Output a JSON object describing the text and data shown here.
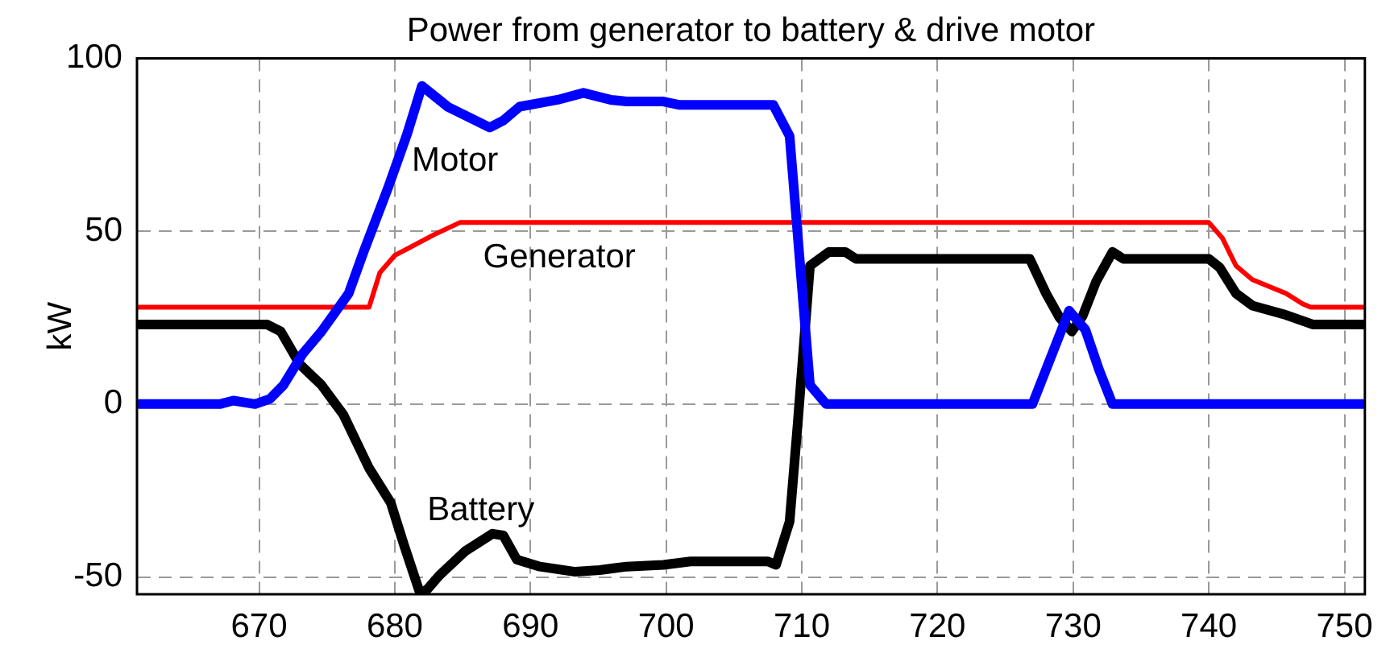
{
  "chart_data": {
    "type": "line",
    "title": "Power from generator to battery & drive motor",
    "ylabel": "kW",
    "xlim": [
      661,
      751.5
    ],
    "xticks": [
      670,
      680,
      690,
      700,
      710,
      720,
      730,
      740,
      750
    ],
    "ylim": [
      -55,
      100
    ],
    "yticks": [
      -50,
      0,
      50,
      100
    ],
    "grid": true,
    "marker": "none",
    "series": [
      {
        "name": "Motor",
        "color": "#0000ff",
        "x": [
          661,
          667.1,
          668.1,
          669.7,
          670.8,
          671.8,
          673.2,
          674.6,
          676.6,
          677.7,
          679.5,
          680.9,
          682,
          683.9,
          687,
          688,
          689.2,
          692,
          693.9,
          695.9,
          697.1,
          699.8,
          701,
          707.9,
          709.1,
          710.6,
          711.8,
          727,
          729.7,
          730.9,
          731.9,
          732.9,
          751.5
        ],
        "values": [
          0,
          0,
          1,
          0,
          1.5,
          5.5,
          14.5,
          21,
          32,
          44,
          62.5,
          78,
          92,
          86,
          80,
          82,
          86,
          88,
          90,
          88,
          87.5,
          87.5,
          86.5,
          86.5,
          77.5,
          5.5,
          0,
          0,
          27,
          21.5,
          10,
          0,
          0
        ]
      },
      {
        "name": "Generator",
        "color": "#ff0000",
        "x": [
          661,
          678.1,
          678.9,
          680,
          682.9,
          684.8,
          740,
          741,
          742,
          743.2,
          745.7,
          746.9,
          747.5,
          751.5
        ],
        "values": [
          28,
          28,
          38,
          43,
          49,
          52.5,
          52.5,
          48,
          40,
          36,
          32,
          29,
          28,
          28
        ]
      },
      {
        "name": "Battery",
        "color": "#000000",
        "x": [
          661,
          670.6,
          671.6,
          673,
          674.6,
          676.2,
          678.1,
          679.7,
          680.7,
          681.8,
          682.3,
          683.3,
          685.2,
          687.2,
          688,
          689,
          690.7,
          693.3,
          695.1,
          697.1,
          699.8,
          701.8,
          707.5,
          708.1,
          709.1,
          709.7,
          710.6,
          712,
          713.2,
          714,
          726.8,
          728,
          729,
          729.9,
          730.7,
          731.7,
          732.9,
          733.7,
          740,
          740.8,
          742,
          743.2,
          745.5,
          747.7,
          751.5
        ],
        "values": [
          23,
          23,
          21,
          11.5,
          5.5,
          -3,
          -18.5,
          -28.5,
          -41,
          -54,
          -54,
          -49.5,
          -42.5,
          -37.5,
          -38,
          -45,
          -47,
          -48.5,
          -48,
          -47,
          -46.5,
          -45.5,
          -45.5,
          -46.5,
          -34,
          -5.5,
          40,
          44,
          44,
          42,
          42,
          32,
          25,
          21,
          25.5,
          35.5,
          44,
          42,
          42,
          39.5,
          32,
          28.5,
          26,
          23,
          23
        ]
      }
    ]
  }
}
